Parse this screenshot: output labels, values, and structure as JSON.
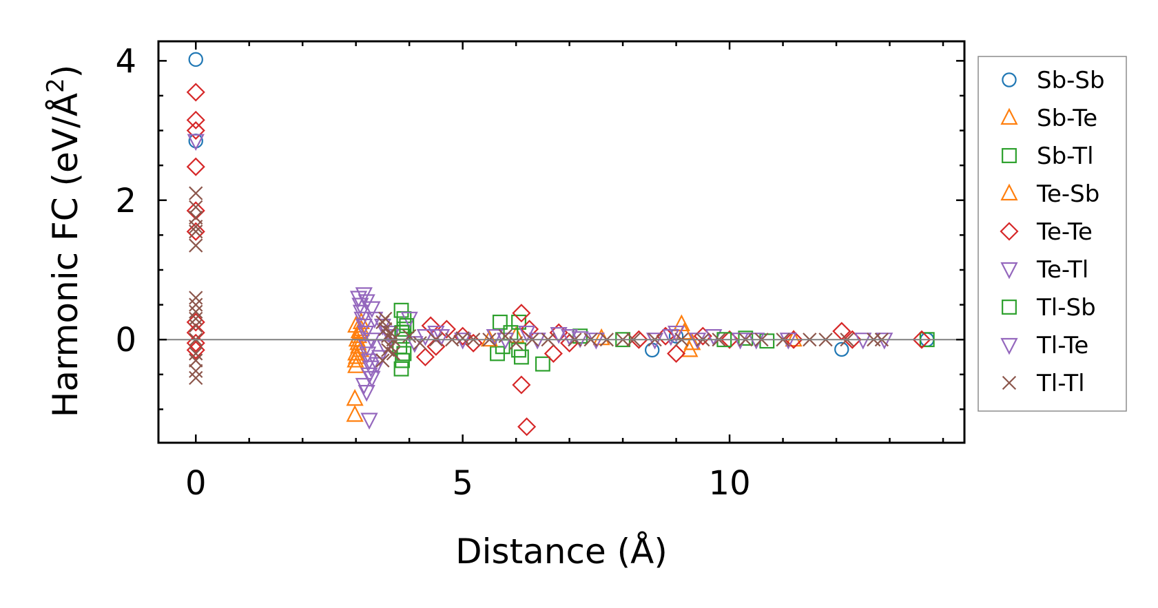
{
  "chart_data": {
    "type": "scatter",
    "title": "",
    "xlabel": "Distance (Å)",
    "ylabel_main": "Harmonic FC (eV/Å",
    "ylabel_sup": "2",
    "ylabel_tail": ")",
    "xlim": [
      -0.7,
      14.4
    ],
    "ylim": [
      -1.48,
      4.28
    ],
    "x_ticks": [
      0,
      5,
      10
    ],
    "x_tick_labels": [
      "0",
      "5",
      "10"
    ],
    "x_minor_ticks": [
      1,
      2,
      3,
      4,
      6,
      7,
      8,
      9,
      11,
      12,
      13,
      14
    ],
    "y_ticks": [
      0,
      2,
      4
    ],
    "y_tick_labels": [
      "0",
      "2",
      "4"
    ],
    "y_minor_ticks": [
      -1,
      -0.5,
      0.5,
      1,
      1.5,
      2.5,
      3,
      3.5
    ],
    "zero_line": 0,
    "legend_position": "outside-right",
    "series": [
      {
        "name": "Sb-Sb",
        "marker": "circle",
        "color": "#1f77b4",
        "x": [
          0,
          0,
          8.55,
          9.0,
          12.1,
          13.7
        ],
        "y": [
          4.02,
          2.85,
          -0.15,
          0.05,
          -0.14,
          0.0
        ]
      },
      {
        "name": "Sb-Te",
        "marker": "triangle-up",
        "color": "#ff7f0e",
        "x": [
          2.98,
          2.98,
          3.0,
          3.0,
          3.05,
          3.05,
          3.1,
          3.1,
          3.02,
          2.99,
          3.04,
          3.08,
          6.0,
          9.1,
          9.15,
          9.25,
          11.2
        ],
        "y": [
          -1.08,
          -0.85,
          -0.38,
          -0.2,
          -0.1,
          0.05,
          0.15,
          0.25,
          0.0,
          -0.3,
          -0.05,
          0.1,
          0.05,
          0.22,
          0.1,
          -0.15,
          0.0
        ]
      },
      {
        "name": "Sb-Tl",
        "marker": "square",
        "color": "#2ca02c",
        "x": [
          3.85,
          3.87,
          3.9,
          3.9,
          3.85,
          3.88,
          5.65,
          5.7,
          5.75,
          6.05,
          6.1,
          6.5,
          7.2,
          8.0,
          10.3,
          10.7,
          13.7
        ],
        "y": [
          -0.42,
          -0.3,
          0.3,
          0.15,
          0.42,
          0.05,
          -0.2,
          0.25,
          -0.1,
          0.25,
          -0.25,
          -0.35,
          0.05,
          0.0,
          0.02,
          -0.02,
          0.0
        ]
      },
      {
        "name": "Te-Sb",
        "marker": "triangle-up",
        "color": "#ff7f0e",
        "x": [
          3.0,
          3.01,
          3.06,
          3.09,
          5.5,
          7.6,
          9.3
        ],
        "y": [
          0.2,
          -0.25,
          0.12,
          -0.15,
          0.0,
          0.02,
          -0.05
        ]
      },
      {
        "name": "Te-Te",
        "marker": "diamond",
        "color": "#d62728",
        "x": [
          0,
          0,
          0,
          0,
          0,
          0,
          0,
          0,
          0,
          0,
          4.3,
          4.4,
          4.5,
          4.7,
          5.0,
          5.2,
          6.1,
          6.1,
          6.2,
          6.25,
          6.7,
          6.8,
          7.0,
          8.3,
          8.8,
          9.0,
          9.5,
          10.0,
          11.2,
          12.1,
          12.3,
          13.6
        ],
        "y": [
          3.55,
          3.15,
          3.0,
          2.48,
          1.85,
          1.55,
          0.25,
          0.1,
          -0.05,
          -0.15,
          -0.25,
          0.2,
          -0.1,
          0.15,
          0.05,
          -0.05,
          0.38,
          -0.65,
          -1.25,
          0.15,
          -0.2,
          0.1,
          -0.05,
          0.0,
          0.05,
          -0.2,
          0.05,
          0.0,
          0.0,
          0.12,
          0.0,
          0.0
        ]
      },
      {
        "name": "Te-Tl",
        "marker": "triangle-down",
        "color": "#9467bd",
        "x": [
          0,
          3.15,
          3.2,
          3.3,
          3.25,
          3.35,
          3.4,
          3.5,
          3.45,
          3.6,
          3.55,
          3.65,
          4.0,
          4.3,
          4.5,
          5.8,
          6.2,
          6.8,
          7.0,
          7.5,
          8.6,
          9.0,
          9.7,
          10.5,
          11.1,
          12.5,
          12.9
        ],
        "y": [
          2.85,
          0.65,
          0.55,
          0.45,
          -0.5,
          0.3,
          -0.35,
          0.2,
          -0.25,
          0.1,
          -0.1,
          0.05,
          0.3,
          0.05,
          0.1,
          0.0,
          0.1,
          0.08,
          0.05,
          0.0,
          0.0,
          0.1,
          0.05,
          0.0,
          0.0,
          0.0,
          0.0
        ]
      },
      {
        "name": "Tl-Sb",
        "marker": "square",
        "color": "#2ca02c",
        "x": [
          3.82,
          3.86,
          3.9,
          3.95,
          5.9,
          6.05,
          9.9
        ],
        "y": [
          -0.1,
          0.1,
          -0.2,
          0.2,
          0.1,
          -0.15,
          0.0
        ]
      },
      {
        "name": "Tl-Te",
        "marker": "triangle-down",
        "color": "#9467bd",
        "x": [
          3.05,
          3.08,
          3.1,
          3.12,
          3.15,
          3.18,
          3.2,
          3.22,
          3.25,
          3.28,
          3.3,
          3.15,
          3.2,
          3.25,
          3.3,
          4.1,
          4.6,
          5.0,
          5.6,
          6.4,
          7.2,
          8.9,
          9.4,
          10.2
        ],
        "y": [
          0.6,
          0.5,
          0.4,
          0.3,
          0.2,
          0.1,
          -0.1,
          -0.2,
          -0.3,
          -0.4,
          -0.55,
          -0.65,
          -0.75,
          -1.15,
          0.0,
          -0.05,
          0.05,
          0.0,
          0.05,
          0.0,
          0.02,
          0.05,
          0.0,
          0.0
        ]
      },
      {
        "name": "Tl-Tl",
        "marker": "x",
        "color": "#8c564b",
        "x": [
          0,
          0,
          0,
          0,
          0,
          0,
          0,
          0,
          0,
          0,
          0,
          0,
          0,
          0,
          0,
          0,
          3.5,
          3.55,
          3.6,
          3.65,
          3.7,
          3.5,
          3.55,
          3.6,
          3.65,
          3.7,
          4.0,
          4.2,
          4.5,
          4.8,
          5.0,
          5.2,
          5.5,
          5.8,
          6.0,
          6.3,
          6.6,
          7.1,
          7.4,
          7.7,
          8.0,
          8.2,
          8.6,
          9.1,
          9.5,
          9.8,
          10.3,
          10.6,
          11.0,
          11.5,
          11.8,
          12.2,
          12.7,
          12.85
        ],
        "y": [
          2.1,
          1.9,
          1.75,
          1.62,
          1.55,
          1.35,
          0.6,
          0.5,
          0.4,
          0.3,
          0.2,
          0.0,
          -0.2,
          -0.3,
          -0.45,
          -0.55,
          0.25,
          0.15,
          0.05,
          -0.1,
          -0.2,
          -0.3,
          0.3,
          -0.15,
          0.1,
          0.0,
          0.05,
          -0.05,
          0.0,
          0.0,
          0.02,
          0.0,
          0.0,
          0.05,
          -0.05,
          0.0,
          0.0,
          0.0,
          0.0,
          0.0,
          0.0,
          0.0,
          0.0,
          0.0,
          0.0,
          0.0,
          0.0,
          0.0,
          0.0,
          0.0,
          0.0,
          0.0,
          0.0,
          0.0
        ]
      }
    ]
  }
}
